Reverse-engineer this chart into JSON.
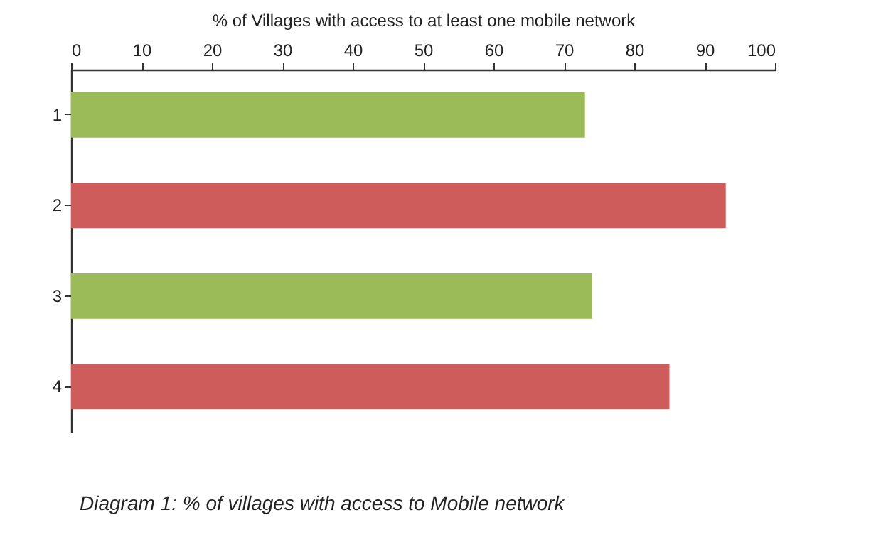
{
  "chart_data": {
    "type": "bar",
    "orientation": "horizontal",
    "xlabel": "% of Villages with access to at least one mobile network",
    "categories": [
      "1",
      "2",
      "3",
      "4"
    ],
    "values": [
      73,
      93,
      74,
      85
    ],
    "colors": [
      "#9bbb59",
      "#cd5c5a",
      "#9bbb59",
      "#cd5c5a"
    ],
    "xlim": [
      0,
      100
    ],
    "xticks": [
      0,
      10,
      20,
      30,
      40,
      50,
      60,
      70,
      80,
      90,
      100
    ],
    "grid": false,
    "annotations": [
      "Diagram 1: % of villages with access to Mobile network"
    ]
  }
}
